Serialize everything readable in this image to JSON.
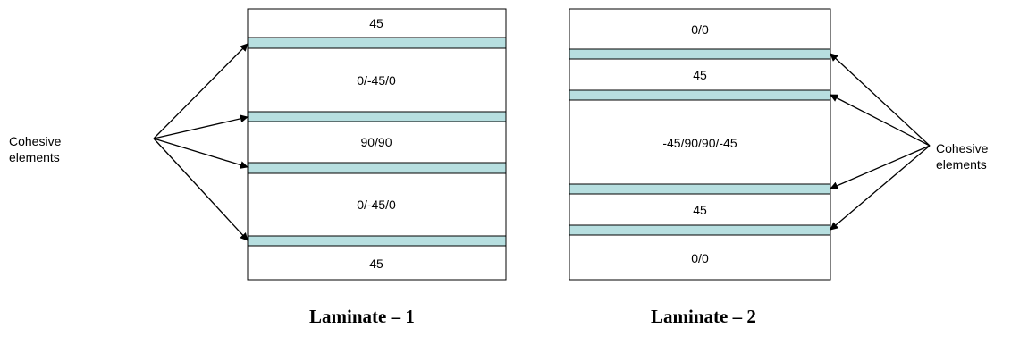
{
  "colors": {
    "cohesive_fill": "#b7dfe0",
    "ply_fill": "#ffffff",
    "stroke": "#000000"
  },
  "laminate1": {
    "caption": "Laminate – 1",
    "plies": [
      "45",
      "0/-45/0",
      "90/90",
      "0/-45/0",
      "45"
    ],
    "label_line1": "Cohesive",
    "label_line2": "elements"
  },
  "laminate2": {
    "caption": "Laminate – 2",
    "plies": [
      "0/0",
      "45",
      "-45/90/90/-45",
      "45",
      "0/0"
    ],
    "label_line1": "Cohesive",
    "label_line2": "elements"
  }
}
